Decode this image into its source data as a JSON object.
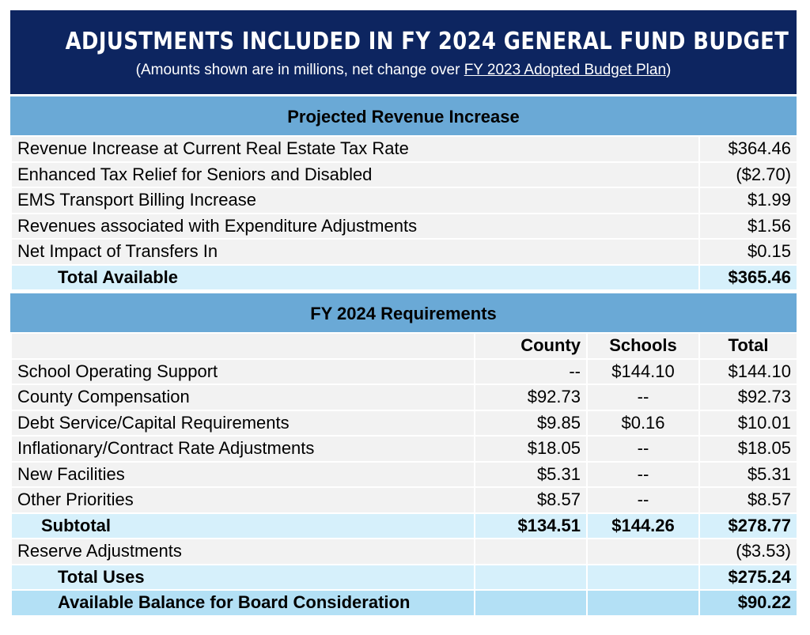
{
  "header": {
    "title": "ADJUSTMENTS INCLUDED IN FY 2024 GENERAL FUND BUDGET",
    "subtitle_prefix": "(Amounts shown are in millions, net change over ",
    "subtitle_link": "FY 2023 Adopted Budget Plan",
    "subtitle_suffix": ")"
  },
  "revenue": {
    "heading": "Projected Revenue Increase",
    "rows": [
      {
        "label": "Revenue Increase at Current Real Estate Tax Rate",
        "total": "$364.46"
      },
      {
        "label": "Enhanced Tax Relief for Seniors and Disabled",
        "total": "($2.70)"
      },
      {
        "label": "EMS Transport Billing Increase",
        "total": "$1.99"
      },
      {
        "label": "Revenues associated with Expenditure Adjustments",
        "total": "$1.56"
      },
      {
        "label": "Net Impact of Transfers In",
        "total": "$0.15"
      }
    ],
    "total_label": "Total Available",
    "total_value": "$365.46"
  },
  "requirements": {
    "heading": "FY 2024 Requirements",
    "columns": [
      "County",
      "Schools",
      "Total"
    ],
    "rows": [
      {
        "label": "School Operating Support",
        "county": "--",
        "schools": "$144.10",
        "total": "$144.10"
      },
      {
        "label": "County Compensation",
        "county": "$92.73",
        "schools": "--",
        "total": "$92.73"
      },
      {
        "label": "Debt Service/Capital Requirements",
        "county": "$9.85",
        "schools": "$0.16",
        "total": "$10.01"
      },
      {
        "label": "Inflationary/Contract Rate Adjustments",
        "county": "$18.05",
        "schools": "--",
        "total": "$18.05"
      },
      {
        "label": "New Facilities",
        "county": "$5.31",
        "schools": "--",
        "total": "$5.31"
      },
      {
        "label": "Other Priorities",
        "county": "$8.57",
        "schools": "--",
        "total": "$8.57"
      }
    ],
    "subtotal": {
      "label": "Subtotal",
      "county": "$134.51",
      "schools": "$144.26",
      "total": "$278.77"
    },
    "reserve": {
      "label": "Reserve Adjustments",
      "total": "($3.53)"
    },
    "total_uses": {
      "label": "Total Uses",
      "total": "$275.24"
    },
    "available": {
      "label": "Available Balance for Board Consideration",
      "total": "$90.22"
    }
  },
  "colors": {
    "banner": "#0d2560",
    "section": "#6aa9d6",
    "total_row": "#d6f0fb",
    "final_row": "#b3e0f5"
  }
}
